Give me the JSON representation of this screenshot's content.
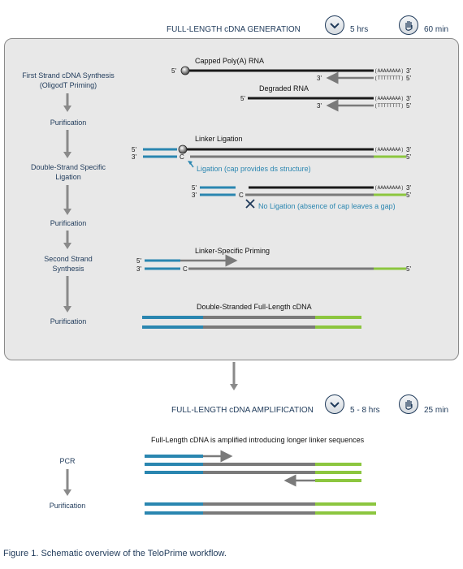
{
  "generation": {
    "title": "FULL-LENGTH cDNA GENERATION",
    "time": "5 hrs",
    "hands_on": "60 min",
    "steps": [
      "First Strand cDNA Synthesis (OligodT Priming)",
      "Purification",
      "Double-Strand Specific Ligation",
      "Purification",
      "Second Strand Synthesis",
      "Purification"
    ],
    "labels": {
      "capped": "Capped Poly(A) RNA",
      "degraded": "Degraded RNA",
      "linker_ligation": "Linker Ligation",
      "ligation_note": "Ligation (cap provides ds structure)",
      "no_ligation": "No Ligation (absence of cap leaves a gap)",
      "linker_priming": "Linker-Specific Priming",
      "ds_cdna": "Double-Stranded Full-Length cDNA"
    },
    "polyA": "(AAAAAAAA)",
    "polyT": "(TTTTTTTT)",
    "five": "5'",
    "three": "3'",
    "c": "C"
  },
  "amplification": {
    "title": "FULL-LENGTH cDNA AMPLIFICATION",
    "time": "5 - 8 hrs",
    "hands_on": "25 min",
    "steps": [
      "PCR",
      "Purification"
    ],
    "note": "Full-Length cDNA is amplified introducing longer linker sequences"
  },
  "caption": "Figure 1. Schematic overview of the TeloPrime workflow.",
  "colors": {
    "teal": "#2a86b0",
    "green": "#8cc63f",
    "grey": "#7a7a7a",
    "black": "#1a1a1a"
  }
}
